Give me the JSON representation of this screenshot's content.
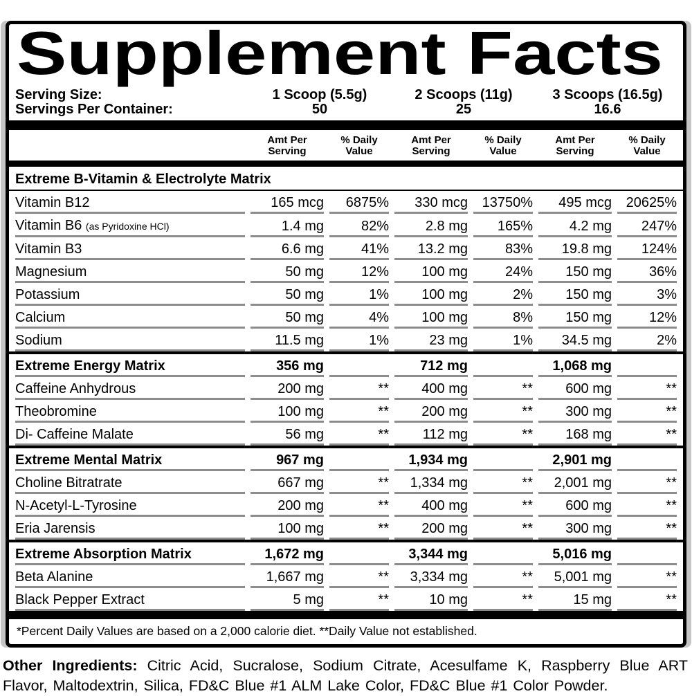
{
  "colors": {
    "background": "#ffffff",
    "text": "#000000",
    "separator": "#8c8c8c"
  },
  "label": {
    "title": "Supplement Facts",
    "serving_size_label": "Serving Size:",
    "servings_per_container_label": "Servings Per Container:",
    "serving_columns": [
      {
        "scoops": "1 Scoop (5.5g)",
        "servings_count": "50"
      },
      {
        "scoops": "2 Scoops (11g)",
        "servings_count": "25"
      },
      {
        "scoops": "3 Scoops (16.5g)",
        "servings_count": "16.6"
      }
    ],
    "column_headers": {
      "amt": "Amt Per\nServing",
      "dv": "% Daily\nValue"
    },
    "sections": [
      {
        "header": {
          "name": "Extreme B-Vitamin & Electrolyte Matrix",
          "values": [
            "",
            "",
            "",
            "",
            "",
            ""
          ]
        },
        "rows": [
          {
            "name": "Vitamin B12",
            "note": "",
            "values": [
              "165 mcg",
              "6875%",
              "330 mcg",
              "13750%",
              "495 mcg",
              "20625%"
            ]
          },
          {
            "name": "Vitamin B6",
            "note": "(as Pyridoxine HCl)",
            "values": [
              "1.4 mg",
              "82%",
              "2.8 mg",
              "165%",
              "4.2 mg",
              "247%"
            ]
          },
          {
            "name": "Vitamin B3",
            "note": "",
            "values": [
              "6.6 mg",
              "41%",
              "13.2 mg",
              "83%",
              "19.8 mg",
              "124%"
            ]
          },
          {
            "name": "Magnesium",
            "note": "",
            "values": [
              "50 mg",
              "12%",
              "100 mg",
              "24%",
              "150 mg",
              "36%"
            ]
          },
          {
            "name": "Potassium",
            "note": "",
            "values": [
              "50 mg",
              "1%",
              "100 mg",
              "2%",
              "150 mg",
              "3%"
            ]
          },
          {
            "name": "Calcium",
            "note": "",
            "values": [
              "50 mg",
              "4%",
              "100 mg",
              "8%",
              "150 mg",
              "12%"
            ]
          },
          {
            "name": "Sodium",
            "note": "",
            "values": [
              "11.5 mg",
              "1%",
              "23 mg",
              "1%",
              "34.5 mg",
              "2%"
            ]
          }
        ]
      },
      {
        "header": {
          "name": "Extreme Energy Matrix",
          "values": [
            "356 mg",
            "",
            "712 mg",
            "",
            "1,068 mg",
            ""
          ]
        },
        "rows": [
          {
            "name": "Caffeine Anhydrous",
            "note": "",
            "values": [
              "200 mg",
              "**",
              "400 mg",
              "**",
              "600 mg",
              "**"
            ]
          },
          {
            "name": "Theobromine",
            "note": "",
            "values": [
              "100 mg",
              "**",
              "200 mg",
              "**",
              "300 mg",
              "**"
            ]
          },
          {
            "name": "Di- Caffeine Malate",
            "note": "",
            "values": [
              "56 mg",
              "**",
              "112 mg",
              "**",
              "168 mg",
              "**"
            ]
          }
        ]
      },
      {
        "header": {
          "name": "Extreme Mental Matrix",
          "values": [
            "967 mg",
            "",
            "1,934 mg",
            "",
            "2,901 mg",
            ""
          ]
        },
        "rows": [
          {
            "name": "Choline Bitratrate",
            "note": "",
            "values": [
              "667 mg",
              "**",
              "1,334 mg",
              "**",
              "2,001 mg",
              "**"
            ]
          },
          {
            "name": "N-Acetyl-L-Tyrosine",
            "note": "",
            "values": [
              "200 mg",
              "**",
              "400 mg",
              "**",
              "600 mg",
              "**"
            ]
          },
          {
            "name": "Eria Jarensis",
            "note": "",
            "values": [
              "100 mg",
              "**",
              "200 mg",
              "**",
              "300 mg",
              "**"
            ]
          }
        ]
      },
      {
        "header": {
          "name": "Extreme Absorption Matrix",
          "values": [
            "1,672 mg",
            "",
            "3,344 mg",
            "",
            "5,016 mg",
            ""
          ]
        },
        "rows": [
          {
            "name": "Beta Alanine",
            "note": "",
            "values": [
              "1,667 mg",
              "**",
              "3,334 mg",
              "**",
              "5,001 mg",
              "**"
            ]
          },
          {
            "name": "Black Pepper Extract",
            "note": "",
            "values": [
              "5 mg",
              "**",
              "10 mg",
              "**",
              "15 mg",
              "**"
            ]
          }
        ]
      }
    ],
    "footnote": "*Percent Daily Values are based on a 2,000 calorie diet.  **Daily Value not established."
  },
  "other_ingredients": {
    "label": "Other Ingredients:",
    "text": "Citric Acid, Sucralose, Sodium Citrate, Acesulfame K, Raspberry Blue ART Flavor, Maltodextrin, Silica, FD&C Blue #1 ALM Lake Color, FD&C Blue #1 Color Powder."
  }
}
